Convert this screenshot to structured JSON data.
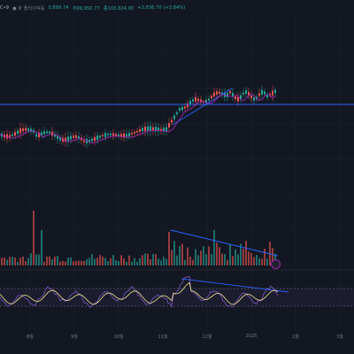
{
  "infobar": {
    "prefix": "C•9",
    "exchange": "● 파 플리이덕동",
    "open": "0,899.74",
    "high": "저99,950.77",
    "close": "종103,824.00",
    "change": "+3,836.70 (+3.84%)"
  },
  "xaxis": {
    "labels": [
      "8월",
      "9월",
      "10월",
      "11월",
      "12월",
      "2025",
      "2월",
      "3월"
    ]
  },
  "colors": {
    "background": "#131722",
    "candle_up": "#26a69a",
    "candle_down": "#ef5350",
    "trendline": "#2962ff",
    "ma_line": "#9c27b0",
    "rsi_line": "#7e57c2",
    "rsi_signal": "#f0e68c"
  },
  "icons": [
    "selection-circle-icon"
  ]
}
